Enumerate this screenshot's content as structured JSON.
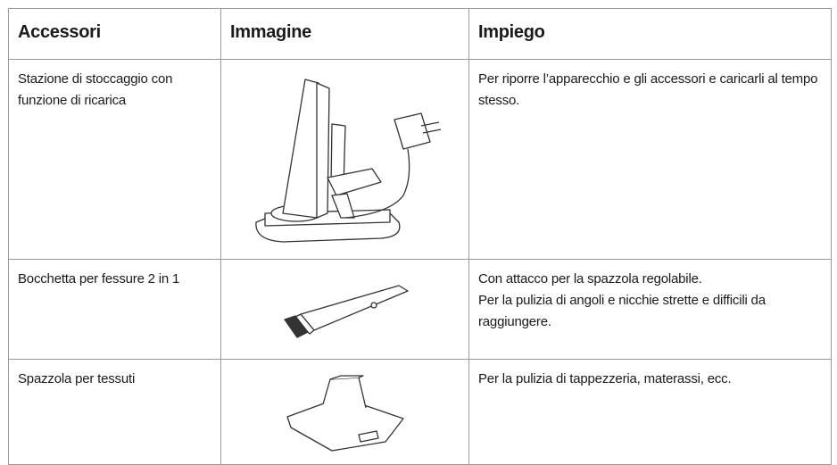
{
  "table": {
    "header": [
      "Accessori",
      "Immagine",
      "Impiego"
    ],
    "rows": [
      {
        "name": "Stazione di stoccaggio con funzione di ricarica",
        "use": [
          "Per riporre l’apparecchio e gli accessori e caricarli al tempo stesso."
        ]
      },
      {
        "name": "Bocchetta per fessure 2 in 1",
        "use": [
          "Con attacco per la spazzola regolabile.",
          "Per la pulizia di angoli e nicchie strette e difficili da raggiungere."
        ]
      },
      {
        "name": "Spazzola per tessuti",
        "use": [
          "Per la pulizia di tappezzeria, materassi, ecc."
        ]
      }
    ]
  }
}
